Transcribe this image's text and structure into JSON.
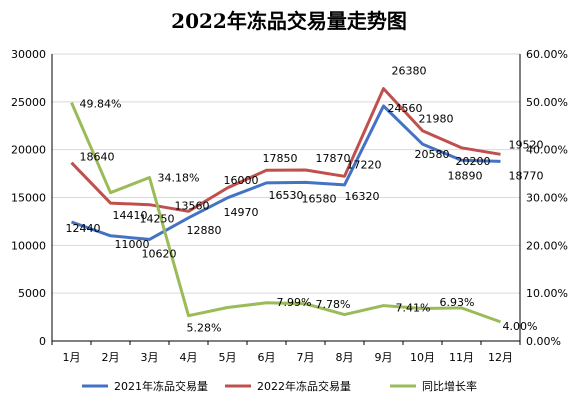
{
  "chart_data": {
    "type": "line",
    "title": "2022年冻品交易量走势图",
    "categories": [
      "1月",
      "2月",
      "3月",
      "4月",
      "5月",
      "6月",
      "7月",
      "8月",
      "9月",
      "10月",
      "11月",
      "12月"
    ],
    "y_left": {
      "min": 0,
      "max": 30000,
      "step": 5000,
      "tick_labels": [
        "0",
        "5000",
        "10000",
        "15000",
        "20000",
        "25000",
        "30000"
      ]
    },
    "y_right": {
      "min": 0,
      "max": 60,
      "step": 10,
      "tick_labels": [
        "0.00%",
        "10.00%",
        "20.00%",
        "30.00%",
        "40.00%",
        "50.00%",
        "60.00%"
      ]
    },
    "grid": true,
    "legend_position": "bottom",
    "series": [
      {
        "name": "2021年冻品交易量",
        "axis": "left",
        "color": "#4472c4",
        "values": [
          12440,
          11000,
          10620,
          12880,
          14970,
          16530,
          16580,
          16320,
          24560,
          20580,
          18890,
          18770
        ],
        "labels": [
          "12440",
          "11000",
          "10620",
          "12880",
          "14970",
          "16530",
          "16580",
          "16320",
          "24560",
          "20580",
          "18890",
          "18770"
        ]
      },
      {
        "name": "2022年冻品交易量",
        "axis": "left",
        "color": "#c0504d",
        "values": [
          18640,
          14410,
          14250,
          13560,
          16000,
          17850,
          17870,
          17220,
          26380,
          21980,
          20200,
          19520
        ],
        "labels": [
          "18640",
          "14410",
          "14250",
          "13560",
          "16000",
          "17850",
          "17870",
          "17220",
          "26380",
          "21980",
          "20200",
          "19520"
        ]
      },
      {
        "name": "同比增长率",
        "axis": "right",
        "color": "#9bbb59",
        "values": [
          49.84,
          31.0,
          34.18,
          5.28,
          7.0,
          7.99,
          7.78,
          5.51,
          7.41,
          6.8,
          6.93,
          4.0
        ],
        "labels": [
          "49.84%",
          "",
          "34.18%",
          "5.28%",
          "",
          "7.99%",
          "7.78%",
          "",
          "7.41%",
          "",
          "6.93%",
          "4.00%"
        ]
      }
    ]
  }
}
